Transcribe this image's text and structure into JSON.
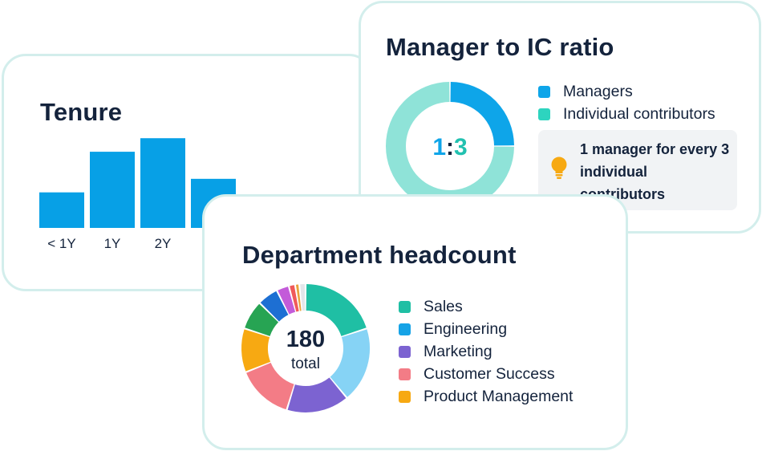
{
  "tenure": {
    "title": "Tenure"
  },
  "ratio": {
    "title": "Manager to IC ratio",
    "center_label": "1:3",
    "note": "1 manager for every 3 individual contributors",
    "legend": [
      {
        "label": "Managers",
        "color": "#0ea5e9"
      },
      {
        "label": "Individual contributors",
        "color": "#2dd4bf"
      }
    ]
  },
  "department": {
    "title": "Department headcount",
    "center_value": "180",
    "center_caption": "total",
    "legend": [
      {
        "label": "Sales",
        "color": "#1fbfa4"
      },
      {
        "label": "Engineering",
        "color": "#16a3e6"
      },
      {
        "label": "Marketing",
        "color": "#7c63d1"
      },
      {
        "label": "Customer Success",
        "color": "#f37c86"
      },
      {
        "label": "Product Management",
        "color": "#f7a912"
      }
    ]
  },
  "chart_data": [
    {
      "type": "bar",
      "title": "Tenure",
      "categories": [
        "< 1Y",
        "1Y",
        "2Y",
        ""
      ],
      "values": [
        42,
        90,
        106,
        58
      ],
      "ylim": [
        0,
        110
      ],
      "color": "#07a0e6",
      "grid": false
    },
    {
      "type": "pie",
      "title": "Manager to IC ratio",
      "donut": true,
      "labels": [
        "Managers",
        "Individual contributors"
      ],
      "values": [
        1,
        3
      ],
      "colors": [
        "#0ea5e9",
        "#8fe3d8"
      ]
    },
    {
      "type": "pie",
      "title": "Department headcount",
      "donut": true,
      "total": 180,
      "labels": [
        "Sales",
        "Engineering",
        "Marketing",
        "Customer Success",
        "Product Management",
        "",
        "",
        "",
        "",
        "",
        ""
      ],
      "values": [
        38,
        36,
        30,
        27,
        21,
        14,
        10,
        6,
        3,
        2,
        3
      ],
      "colors": [
        "#1fbfa4",
        "#86d3f5",
        "#7c63d1",
        "#f37c86",
        "#f7a912",
        "#27a453",
        "#1d6fd3",
        "#c35bd9",
        "#f05a5a",
        "#e8a33b",
        "#e3e6ea"
      ]
    }
  ]
}
